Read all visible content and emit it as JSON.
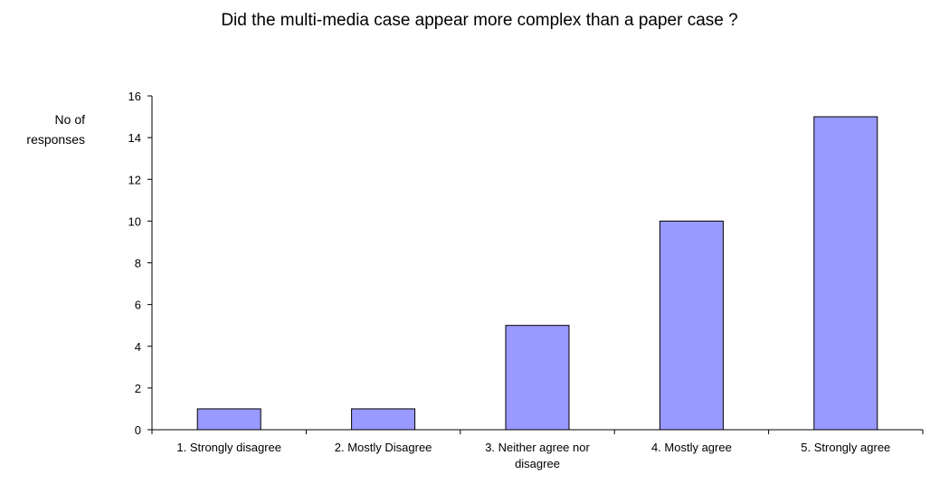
{
  "chart_data": {
    "type": "bar",
    "title": "Did the multi-media case appear more complex than a paper case ?",
    "ylabel": "No of responses",
    "xlabel": "",
    "categories": [
      "1. Strongly disagree",
      "2. Mostly Disagree",
      "3. Neither agree nor disagree",
      "4. Mostly agree",
      "5. Strongly agree"
    ],
    "values": [
      1,
      1,
      5,
      10,
      15
    ],
    "ylim": [
      0,
      16
    ],
    "yticks": [
      "0",
      "2",
      "4",
      "6",
      "8",
      "10",
      "12",
      "14",
      "16"
    ],
    "bar_color": "#9999FF",
    "bar_stroke": "#000000",
    "grid": false,
    "legend": "none"
  }
}
